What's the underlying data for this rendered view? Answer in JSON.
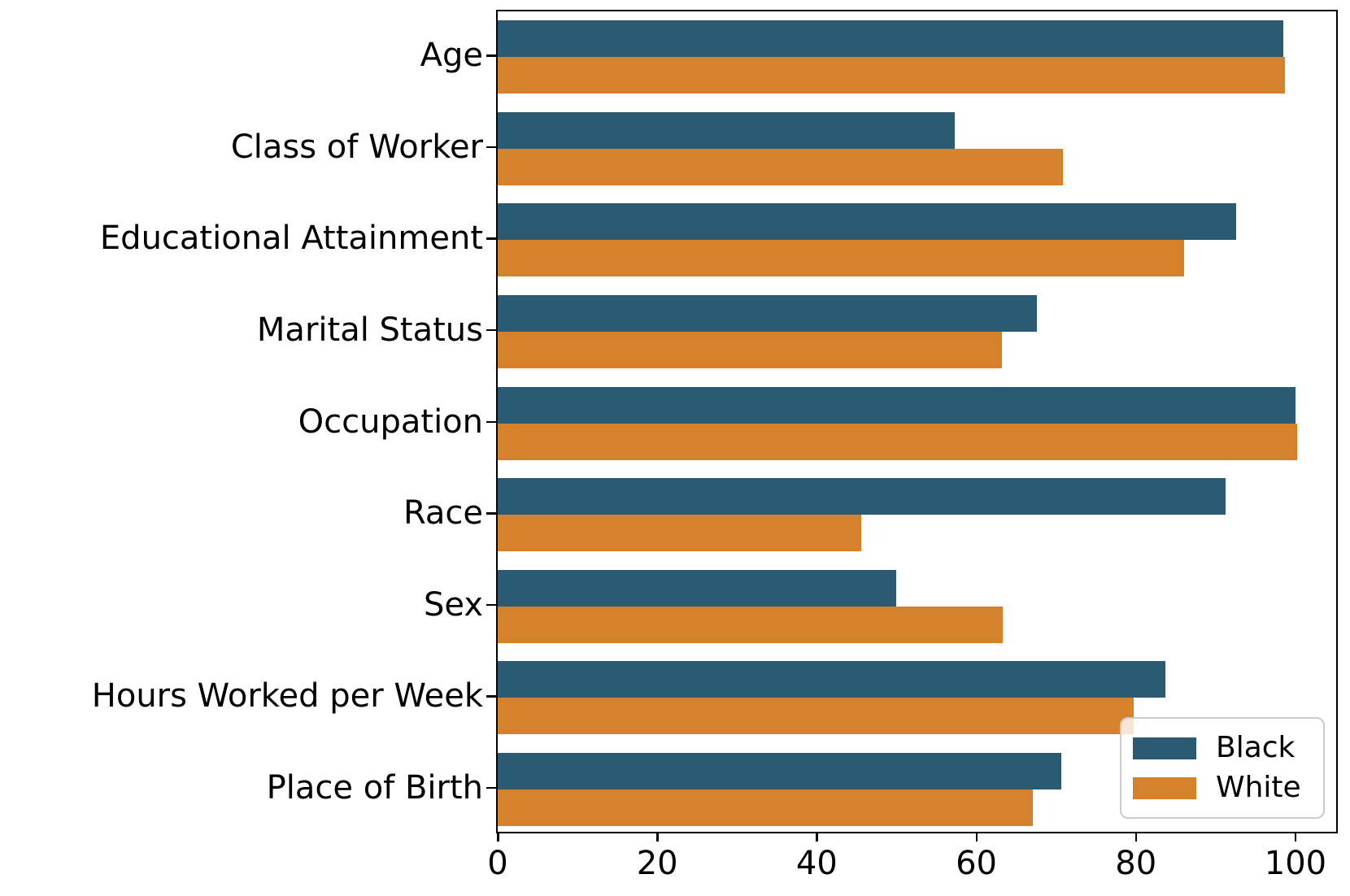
{
  "chart_data": {
    "type": "bar",
    "orientation": "horizontal",
    "title": "",
    "xlabel": "",
    "ylabel": "",
    "categories": [
      "Age",
      "Class of Worker",
      "Educational Attainment",
      "Marital Status",
      "Occupation",
      "Race",
      "Sex",
      "Hours Worked per Week",
      "Place of Birth"
    ],
    "series": [
      {
        "name": "Black",
        "color": "#2b5b73",
        "values": [
          98.5,
          57.3,
          92.6,
          67.6,
          100.0,
          91.2,
          50.0,
          83.7,
          70.6
        ]
      },
      {
        "name": "White",
        "color": "#d6822d",
        "values": [
          98.7,
          70.9,
          86.0,
          63.2,
          100.2,
          45.6,
          63.3,
          79.7,
          67.1
        ]
      }
    ],
    "xticks": [
      0,
      20,
      40,
      60,
      80,
      100
    ],
    "xlim": [
      0,
      105
    ],
    "grid": false,
    "legend_position": "lower right",
    "legend_entries": [
      "Black",
      "White"
    ]
  }
}
